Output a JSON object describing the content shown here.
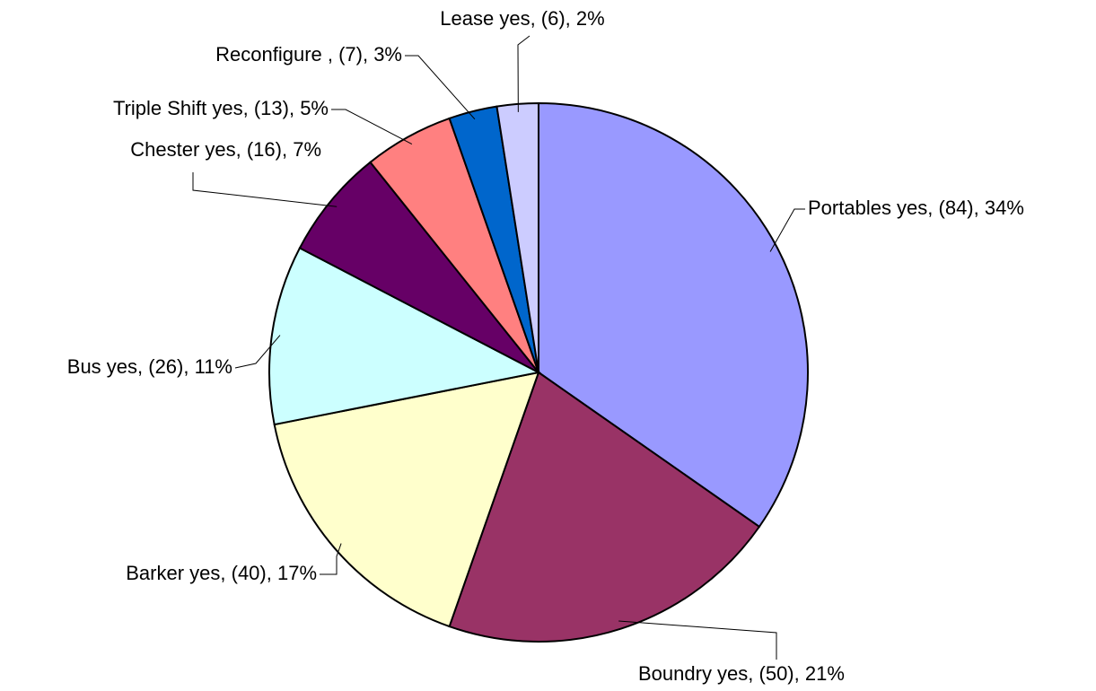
{
  "chart_data": {
    "type": "pie",
    "categories": [
      "Portables yes, (84), 34%",
      "Boundry yes, (50), 21%",
      "Barker yes, (40), 17%",
      "Bus yes, (26), 11%",
      "Chester yes, (16), 7%",
      "Triple Shift yes, (13), 5%",
      "Reconfigure , (7), 3%",
      "Lease yes, (6), 2%"
    ],
    "values": [
      84,
      50,
      40,
      26,
      16,
      13,
      7,
      6
    ],
    "colors": [
      "#9999ff",
      "#993366",
      "#ffffcc",
      "#ccffff",
      "#660066",
      "#ff8080",
      "#0066cc",
      "#ccccff"
    ]
  }
}
